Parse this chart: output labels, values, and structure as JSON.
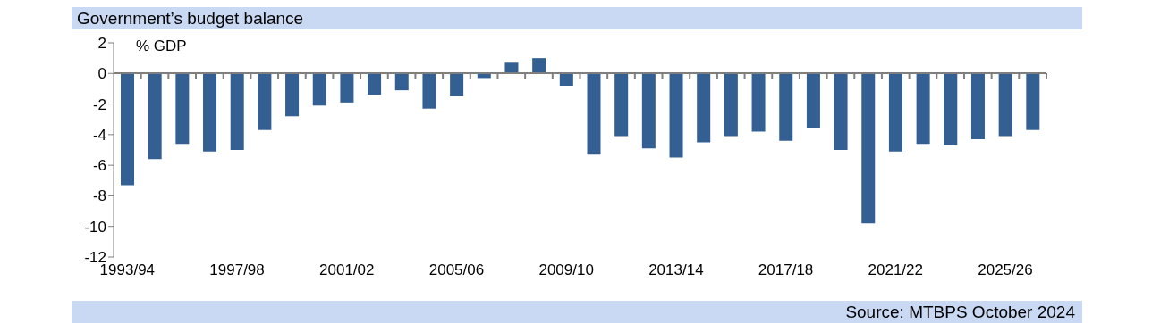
{
  "chart_data": {
    "type": "bar",
    "title": "Government’s budget balance",
    "ylabel": "% GDP",
    "categories": [
      "1993/94",
      null,
      null,
      null,
      "1997/98",
      null,
      null,
      null,
      "2001/02",
      null,
      null,
      null,
      "2005/06",
      null,
      null,
      null,
      "2009/10",
      null,
      null,
      null,
      "2013/14",
      null,
      null,
      null,
      "2017/18",
      null,
      null,
      null,
      "2021/22",
      null,
      null,
      null,
      "2025/26",
      null
    ],
    "values": [
      -7.3,
      -5.6,
      -4.6,
      -5.1,
      -5.0,
      -3.7,
      -2.8,
      -2.1,
      -1.9,
      -1.4,
      -1.1,
      -2.3,
      -1.5,
      -0.3,
      0.7,
      1.0,
      -0.8,
      -5.3,
      -4.1,
      -4.9,
      -5.5,
      -4.5,
      -4.1,
      -3.8,
      -4.4,
      -3.6,
      -5.0,
      -9.8,
      -5.1,
      -4.6,
      -4.7,
      -4.3,
      -4.1,
      -3.7
    ],
    "color": "#335f93",
    "ylim": [
      -12,
      2
    ],
    "yticks": [
      -12,
      -10,
      -8,
      -6,
      -4,
      -2,
      0,
      2
    ],
    "annotations": [
      "Source: MTBPS October 2024"
    ]
  }
}
